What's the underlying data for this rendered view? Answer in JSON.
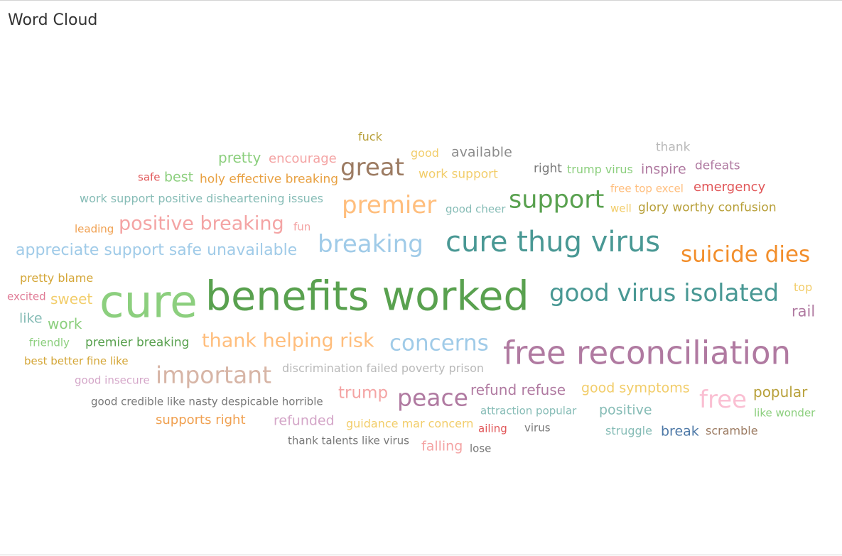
{
  "title": "Word Cloud",
  "chart_data": {
    "type": "wordcloud",
    "title": "Word Cloud",
    "words": [
      {
        "text": "fuck",
        "color": "#b8a03a"
      },
      {
        "text": "thank",
        "color": "#b9b9b9"
      },
      {
        "text": "pretty",
        "color": "#8ccf7e"
      },
      {
        "text": "encourage",
        "color": "#f4a4a4"
      },
      {
        "text": "good",
        "color": "#f2cd6a"
      },
      {
        "text": "available",
        "color": "#8c8c8c"
      },
      {
        "text": "great",
        "color": "#9c7b62"
      },
      {
        "text": "safe",
        "color": "#e15759"
      },
      {
        "text": "best",
        "color": "#8ccf7e"
      },
      {
        "text": "holy effective breaking",
        "color": "#e8a040"
      },
      {
        "text": "work support",
        "color": "#f2cd6a"
      },
      {
        "text": "right",
        "color": "#797979"
      },
      {
        "text": "trump virus",
        "color": "#8ccf7e"
      },
      {
        "text": "inspire",
        "color": "#b07aa1"
      },
      {
        "text": "defeats",
        "color": "#b07aa1"
      },
      {
        "text": "work support positive disheartening issues",
        "color": "#86bcb6"
      },
      {
        "text": "premier",
        "color": "#ffbe7d"
      },
      {
        "text": "support",
        "color": "#59a14f"
      },
      {
        "text": "free top excel",
        "color": "#ffbe7d"
      },
      {
        "text": "emergency",
        "color": "#e15759"
      },
      {
        "text": "good cheer",
        "color": "#86bcb6"
      },
      {
        "text": "well",
        "color": "#f2cd6a"
      },
      {
        "text": "glory worthy confusion",
        "color": "#b8a03a"
      },
      {
        "text": "leading",
        "color": "#f0a050"
      },
      {
        "text": "positive breaking",
        "color": "#f4a4a4"
      },
      {
        "text": "fun",
        "color": "#f4a4a4"
      },
      {
        "text": "breaking",
        "color": "#a0cbe8"
      },
      {
        "text": "cure thug virus",
        "color": "#499894"
      },
      {
        "text": "appreciate support safe unavailable",
        "color": "#a0cbe8"
      },
      {
        "text": "suicide dies",
        "color": "#f28e2b"
      },
      {
        "text": "pretty blame",
        "color": "#d4a637"
      },
      {
        "text": "top",
        "color": "#f2cd6a"
      },
      {
        "text": "excited",
        "color": "#e07a95"
      },
      {
        "text": "sweet",
        "color": "#f2cd6a"
      },
      {
        "text": "cure",
        "color": "#8ccf7e"
      },
      {
        "text": "benefits worked",
        "color": "#59a14f"
      },
      {
        "text": "good virus isolated",
        "color": "#499894"
      },
      {
        "text": "rail",
        "color": "#b07aa1"
      },
      {
        "text": "like",
        "color": "#86bcb6"
      },
      {
        "text": "work",
        "color": "#8ccf7e"
      },
      {
        "text": "friendly",
        "color": "#8ccf7e"
      },
      {
        "text": "premier breaking",
        "color": "#59a14f"
      },
      {
        "text": "thank helping risk",
        "color": "#ffbe7d"
      },
      {
        "text": "concerns",
        "color": "#a0cbe8"
      },
      {
        "text": "free reconciliation",
        "color": "#b07aa1"
      },
      {
        "text": "best better fine like",
        "color": "#d4a637"
      },
      {
        "text": "important",
        "color": "#d7b5a6"
      },
      {
        "text": "discrimination failed poverty prison",
        "color": "#b9b9b9"
      },
      {
        "text": "good insecure",
        "color": "#d4a6c8"
      },
      {
        "text": "trump",
        "color": "#f4a4a4"
      },
      {
        "text": "peace",
        "color": "#b07aa1"
      },
      {
        "text": "refund refuse",
        "color": "#b07aa1"
      },
      {
        "text": "good symptoms",
        "color": "#f2cd6a"
      },
      {
        "text": "free",
        "color": "#fabfd2"
      },
      {
        "text": "popular",
        "color": "#b8a03a"
      },
      {
        "text": "good credible like nasty despicable horrible",
        "color": "#797979"
      },
      {
        "text": "attraction popular",
        "color": "#86bcb6"
      },
      {
        "text": "positive",
        "color": "#86bcb6"
      },
      {
        "text": "like wonder",
        "color": "#8ccf7e"
      },
      {
        "text": "supports right",
        "color": "#f0a050"
      },
      {
        "text": "refunded",
        "color": "#d4a6c8"
      },
      {
        "text": "guidance mar concern",
        "color": "#f2cd6a"
      },
      {
        "text": "ailing",
        "color": "#e15759"
      },
      {
        "text": "virus",
        "color": "#797979"
      },
      {
        "text": "struggle",
        "color": "#86bcb6"
      },
      {
        "text": "break",
        "color": "#4e79a7"
      },
      {
        "text": "scramble",
        "color": "#9c7b62"
      },
      {
        "text": "thank talents like virus",
        "color": "#797979"
      },
      {
        "text": "falling",
        "color": "#f4a4a4"
      },
      {
        "text": "lose",
        "color": "#797979"
      }
    ]
  }
}
